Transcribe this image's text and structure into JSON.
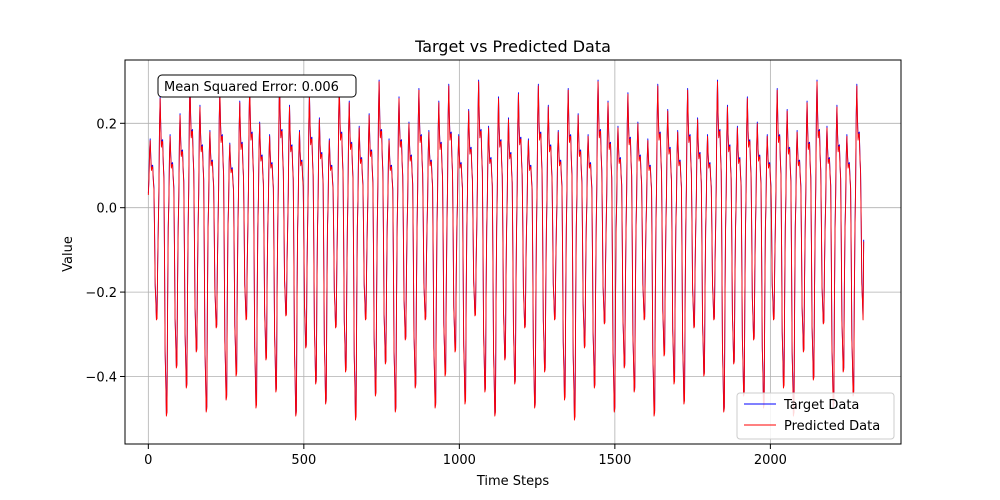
{
  "chart_data": {
    "type": "line",
    "title": "Target vs Predicted Data",
    "xlabel": "Time Steps",
    "ylabel": "Value",
    "xlim": [
      -75,
      2420
    ],
    "ylim": [
      -0.56,
      0.35
    ],
    "xticks": [
      0,
      500,
      1000,
      1500,
      2000
    ],
    "yticks": [
      -0.4,
      -0.2,
      0.0,
      0.2
    ],
    "ytick_labels": [
      "−0.4",
      "−0.2",
      "0.0",
      "0.2"
    ],
    "grid": true,
    "legend": "lower-right",
    "annotation": "Mean Squared Error: 0.006",
    "num_points": 2300,
    "waveform": {
      "period": 32,
      "pattern": [
        -0.05,
        0.28,
        0.18,
        0.12,
        0.02,
        -0.4,
        -0.5
      ],
      "cycle_peaks": [
        0.16,
        0.26,
        0.17,
        0.22,
        0.3,
        0.24,
        0.18,
        0.28,
        0.15,
        0.25,
        0.29,
        0.2,
        0.17,
        0.3,
        0.24,
        0.18,
        0.27,
        0.21,
        0.16,
        0.29,
        0.25,
        0.19,
        0.22,
        0.3,
        0.16,
        0.26,
        0.2,
        0.28,
        0.18,
        0.25,
        0.29,
        0.17,
        0.23,
        0.3,
        0.19,
        0.26,
        0.21,
        0.27,
        0.16,
        0.29,
        0.24,
        0.18,
        0.28,
        0.22,
        0.17,
        0.3,
        0.25,
        0.19,
        0.27,
        0.2,
        0.16,
        0.29,
        0.23,
        0.18,
        0.28,
        0.21,
        0.17,
        0.3,
        0.24,
        0.19,
        0.26,
        0.2,
        0.17,
        0.28,
        0.23,
        0.18,
        0.25,
        0.3,
        0.19,
        0.24,
        0.17,
        0.29
      ],
      "cycle_troughs": [
        -0.28,
        -0.52,
        -0.4,
        -0.45,
        -0.36,
        -0.51,
        -0.3,
        -0.48,
        -0.42,
        -0.28,
        -0.5,
        -0.38,
        -0.46,
        -0.27,
        -0.52,
        -0.35,
        -0.44,
        -0.49,
        -0.3,
        -0.41,
        -0.53,
        -0.28,
        -0.47,
        -0.39,
        -0.51,
        -0.33,
        -0.45,
        -0.28,
        -0.5,
        -0.42,
        -0.36,
        -0.49,
        -0.27,
        -0.46,
        -0.52,
        -0.38,
        -0.44,
        -0.3,
        -0.5,
        -0.41,
        -0.28,
        -0.48,
        -0.53,
        -0.35,
        -0.45,
        -0.29,
        -0.51,
        -0.4,
        -0.46,
        -0.28,
        -0.52,
        -0.37,
        -0.44,
        -0.49,
        -0.3,
        -0.42,
        -0.28,
        -0.51,
        -0.39,
        -0.47,
        -0.33,
        -0.5,
        -0.28,
        -0.45,
        -0.52,
        -0.36,
        -0.43,
        -0.29,
        -0.5,
        -0.41,
        -0.47,
        -0.28
      ],
      "end_value": -0.08
    },
    "series": [
      {
        "name": "Target Data",
        "color": "#0000ff"
      },
      {
        "name": "Predicted Data",
        "color": "#ff0000"
      }
    ]
  }
}
